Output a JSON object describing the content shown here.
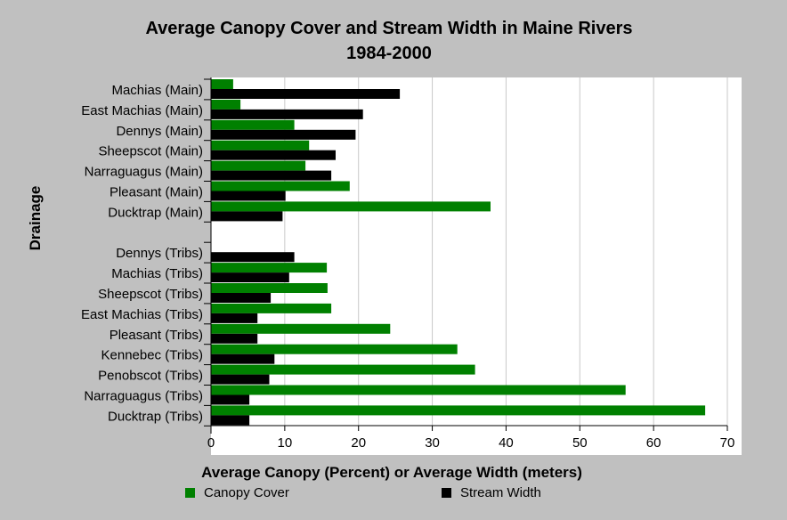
{
  "chart_data": {
    "type": "bar",
    "orientation": "horizontal",
    "title": "Average Canopy Cover and Stream Width in Maine Rivers",
    "subtitle": "1984-2000",
    "xlabel": "Average Canopy (Percent) or Average Width (meters)",
    "ylabel": "Drainage",
    "xlim": [
      0,
      70
    ],
    "xticks": [
      0,
      10,
      20,
      30,
      40,
      50,
      60,
      70
    ],
    "grid": "vertical",
    "legend_position": "bottom",
    "categories": [
      "Machias (Main)",
      "East Machias (Main)",
      "Dennys (Main)",
      "Sheepscot (Main)",
      "Narraguagus (Main)",
      "Pleasant (Main)",
      "Ducktrap (Main)",
      "",
      "Dennys (Tribs)",
      "Machias (Tribs)",
      "Sheepscot (Tribs)",
      "East Machias (Tribs)",
      "Pleasant (Tribs)",
      "Kennebec (Tribs)",
      "Penobscot (Tribs)",
      "Narraguagus (Tribs)",
      "Ducktrap (Tribs)"
    ],
    "series": [
      {
        "name": "Canopy Cover",
        "color": "#008000",
        "values": [
          3,
          4,
          11.3,
          13.3,
          12.8,
          18.8,
          37.9,
          null,
          null,
          15.7,
          15.8,
          16.3,
          24.3,
          33.4,
          35.8,
          56.2,
          67
        ]
      },
      {
        "name": "Stream Width",
        "color": "#000000",
        "values": [
          25.6,
          20.6,
          19.6,
          16.9,
          16.3,
          10.1,
          9.7,
          null,
          11.3,
          10.6,
          8.1,
          6.3,
          6.3,
          8.6,
          7.9,
          5.2,
          5.2
        ]
      }
    ]
  }
}
